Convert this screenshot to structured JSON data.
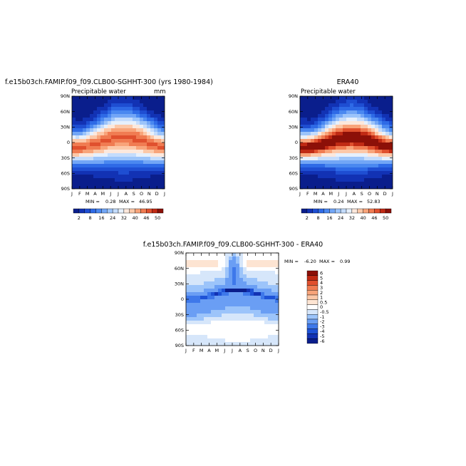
{
  "chart_data": [
    {
      "type": "heatmap",
      "title": "f.e15b03ch.FAMIP.f09_f09.CLB00-SGHHT-300 (yrs 1980-1984)",
      "subtitle": "Precipitable water",
      "units": "mm",
      "x_ticks": [
        "J",
        "F",
        "M",
        "A",
        "M",
        "J",
        "J",
        "A",
        "S",
        "O",
        "N",
        "D",
        "J"
      ],
      "y_ticks": [
        "90N",
        "60N",
        "30N",
        "0",
        "30S",
        "60S",
        "90S"
      ],
      "min_label": "MIN =",
      "min_value": "0.28",
      "max_label": "MAX =",
      "max_value": "46.95",
      "colorbar_labels": [
        "2",
        "8",
        "16",
        "24",
        "32",
        "40",
        "46",
        "50"
      ],
      "field_max": 46.95,
      "field_min": 0.28
    },
    {
      "type": "heatmap",
      "title": "ERA40",
      "subtitle": "Precipitable water",
      "x_ticks": [
        "J",
        "F",
        "M",
        "A",
        "M",
        "J",
        "J",
        "A",
        "S",
        "O",
        "N",
        "D",
        "J"
      ],
      "y_ticks": [
        "90N",
        "60N",
        "30N",
        "0",
        "30S",
        "60S",
        "90S"
      ],
      "min_label": "MIN =",
      "min_value": "0.24",
      "max_label": "MAX =",
      "max_value": "52.83",
      "colorbar_labels": [
        "2",
        "8",
        "16",
        "24",
        "32",
        "40",
        "46",
        "50"
      ],
      "field_max": 52.83,
      "field_min": 0.24
    },
    {
      "type": "heatmap",
      "title": "f.e15b03ch.FAMIP.f09_f09.CLB00-SGHHT-300 - ERA40",
      "x_ticks": [
        "J",
        "F",
        "M",
        "A",
        "M",
        "J",
        "J",
        "A",
        "S",
        "O",
        "N",
        "D",
        "J"
      ],
      "y_ticks": [
        "90N",
        "60N",
        "30N",
        "0",
        "30S",
        "60S",
        "90S"
      ],
      "min_label": "MIN =",
      "min_value": "-6.20",
      "max_label": "MAX =",
      "max_value": "0.99",
      "colorbar_labels": [
        "6",
        "5",
        "4",
        "3",
        "2",
        "1",
        "0.5",
        "0",
        "-0.5",
        "-1",
        "-2",
        "-3",
        "-4",
        "-5",
        "-6"
      ],
      "field_max": 0.99,
      "field_min": -6.2
    }
  ],
  "colors": {
    "abs_scale": [
      "#0a1e8c",
      "#1232b4",
      "#1e4ed2",
      "#2e6ae6",
      "#4a88f0",
      "#72a6f6",
      "#9cc4fa",
      "#c4dcfc",
      "#e6f0fc",
      "#fce8dc",
      "#fcc8a8",
      "#f8a47a",
      "#f07c52",
      "#e0502e",
      "#c02a14",
      "#8c1008"
    ],
    "diff_scale": [
      "#8c1008",
      "#c02a14",
      "#e0502e",
      "#f07c52",
      "#f8a47a",
      "#fcc8a8",
      "#fde4d2",
      "#ffffff",
      "#d6e6fa",
      "#9cc4fa",
      "#6a9ef4",
      "#3e78ea",
      "#1e52d6",
      "#1232b4",
      "#0a1e8c"
    ]
  }
}
